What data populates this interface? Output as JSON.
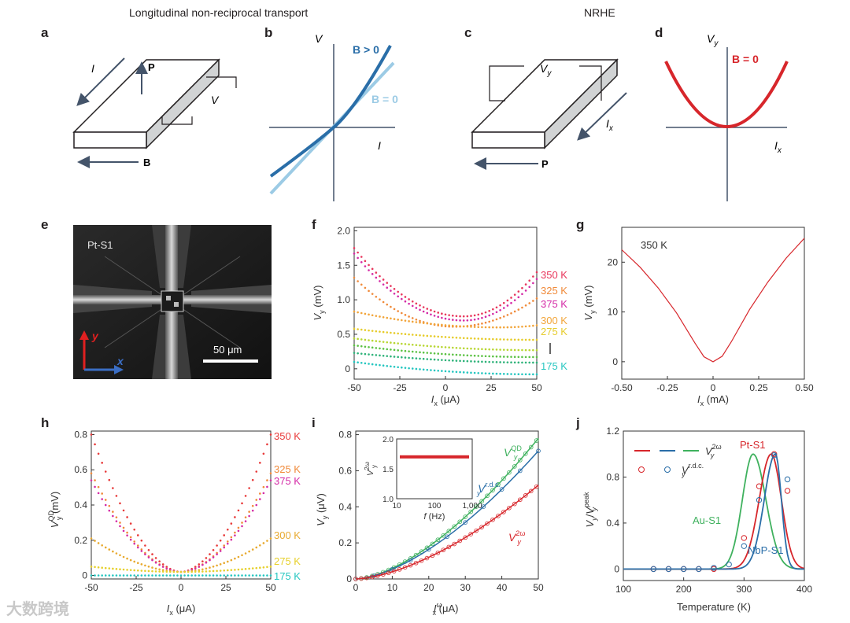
{
  "headers": {
    "left": "Longitudinal non-reciprocal transport",
    "right": "NRHE"
  },
  "panel_labels": {
    "a": "a",
    "b": "b",
    "c": "c",
    "d": "d",
    "e": "e",
    "f": "f",
    "g": "g",
    "h": "h",
    "i": "i",
    "j": "j"
  },
  "schematics": {
    "a": {
      "current": "I",
      "polarization": "P",
      "voltage": "V",
      "field": "B"
    },
    "b": {
      "yaxis": "V",
      "xaxis": "I",
      "pos": "B > 0",
      "zero": "B = 0"
    },
    "c": {
      "voltage": "V",
      "voltage_sub": "y",
      "current": "I",
      "current_sub": "x",
      "polarization": "P"
    },
    "d": {
      "yaxis": "V",
      "yaxis_sub": "y",
      "xaxis": "I",
      "xaxis_sub": "x",
      "curve": "B = 0"
    }
  },
  "micrograph": {
    "sample": "Pt-S1",
    "scale": "50 μm",
    "y_axis": "y",
    "x_axis": "x"
  },
  "colors": {
    "red": "#d7262b",
    "blue": "#2a6ea8",
    "lightblue": "#9ccbe5",
    "green": "#3fb15e",
    "axis": "#333333"
  },
  "chart_data": [
    {
      "panel": "f",
      "type": "scatter",
      "xlabel": "I",
      "xlabel_sub": "x",
      "xunit": " (μA)",
      "ylabel": "V",
      "ylabel_sub": "y",
      "yunit": " (mV)",
      "xlim": [
        -50,
        50
      ],
      "ylim": [
        -0.15,
        2.05
      ],
      "xticks": [
        "-50",
        "-25",
        "0",
        "25",
        "50"
      ],
      "yticks": [
        "0",
        "0.5",
        "1.0",
        "1.5",
        "2.0"
      ],
      "series": [
        {
          "name": "350 K",
          "color": "#e8365c",
          "start": 1.75,
          "min": 0.76,
          "end": 1.4,
          "xmin": 10
        },
        {
          "name": "325 K",
          "color": "#f08a3a",
          "start": 1.32,
          "min": 0.61,
          "end": 1.02,
          "xmin": 5
        },
        {
          "name": "375 K",
          "color": "#d42aa6",
          "start": 1.67,
          "min": 0.7,
          "end": 1.3,
          "xmin": 10
        },
        {
          "name": "300 K",
          "color": "#f2a53a",
          "start": 0.83,
          "min": 0.6,
          "end": 0.63,
          "xmin": 30
        },
        {
          "name": "275 K",
          "color": "#e6cc2c",
          "start": 0.58,
          "min": 0.42,
          "end": 0.42,
          "xmin": 50
        },
        {
          "name": "",
          "color": "#b9d634",
          "start": 0.44,
          "min": 0.27,
          "end": 0.27,
          "xmin": 50
        },
        {
          "name": "",
          "color": "#5cc244",
          "start": 0.34,
          "min": 0.17,
          "end": 0.17,
          "xmin": 50
        },
        {
          "name": "",
          "color": "#2fb37a",
          "start": 0.23,
          "min": 0.09,
          "end": 0.09,
          "xmin": 50
        },
        {
          "name": "175 K",
          "color": "#25c6c0",
          "start": 0.1,
          "min": -0.08,
          "end": -0.08,
          "xmin": 50
        }
      ]
    },
    {
      "panel": "g",
      "type": "line",
      "title": "350 K",
      "xlabel": "I",
      "xlabel_sub": "x",
      "xunit": " (mA)",
      "ylabel": "V",
      "ylabel_sub": "y",
      "yunit": " (mV)",
      "xlim": [
        -0.5,
        0.5
      ],
      "ylim": [
        -3.5,
        27
      ],
      "xticks": [
        "-0.50",
        "-0.25",
        "0",
        "0.25",
        "0.50"
      ],
      "yticks": [
        "0",
        "10",
        "20"
      ],
      "series": [
        {
          "color": "#d7262b",
          "x": [
            -0.5,
            -0.4,
            -0.3,
            -0.2,
            -0.1,
            -0.05,
            0,
            0.05,
            0.1,
            0.2,
            0.3,
            0.4,
            0.5
          ],
          "y": [
            22.5,
            19.0,
            14.8,
            9.8,
            3.8,
            1.0,
            0,
            1.1,
            4.0,
            10.5,
            16.0,
            20.8,
            24.8
          ]
        }
      ]
    },
    {
      "panel": "h",
      "type": "scatter",
      "xlabel": "I",
      "xlabel_sub": "x",
      "xunit": " (μA)",
      "ylabel": "V",
      "ylabel_sub": "y",
      "ylabel_sup": "QD",
      "yunit": " (mV)",
      "xlim": [
        -50,
        50
      ],
      "ylim": [
        -0.02,
        0.82
      ],
      "xticks": [
        "-50",
        "-25",
        "0",
        "25",
        "50"
      ],
      "yticks": [
        "0",
        "0.2",
        "0.4",
        "0.6",
        "0.8"
      ],
      "series": [
        {
          "name": "350 K",
          "color": "#e83a3a",
          "peak": 0.8
        },
        {
          "name": "325 K",
          "color": "#f08a3a",
          "peak": 0.58
        },
        {
          "name": "375 K",
          "color": "#d42aa6",
          "peak": 0.54
        },
        {
          "name": "300 K",
          "color": "#e8aa30",
          "peak": 0.21
        },
        {
          "name": "275 K",
          "color": "#e6d02c",
          "peak": 0.05
        },
        {
          "name": "175 K",
          "color": "#25c6c0",
          "peak": 0.0
        }
      ]
    },
    {
      "panel": "i",
      "type": "scatter",
      "xlabel": "I",
      "xlabel_sub": "x",
      "xlabel_sup": "ω",
      "xunit": " (μA)",
      "ylabel": "V",
      "ylabel_sub": "y",
      "yunit": " (μV)",
      "xlim": [
        0,
        50
      ],
      "ylim": [
        0,
        0.82
      ],
      "xticks": [
        "0",
        "10",
        "20",
        "30",
        "40",
        "50"
      ],
      "yticks": [
        "0",
        "0.2",
        "0.4",
        "0.6",
        "0.8"
      ],
      "series": [
        {
          "name": "QD",
          "color": "#3fb15e",
          "end": 0.78
        },
        {
          "name": "r.d.c.",
          "color": "#2a6ea8",
          "end": 0.71
        },
        {
          "name": "2ω",
          "color": "#d7262b",
          "end": 0.52
        }
      ],
      "inset": {
        "xlabel": "f",
        "xunit": " (Hz)",
        "ylabel": "V",
        "ylabel_sub": "y",
        "ylabel_sup": "2ω",
        "xticks": [
          "10",
          "100",
          "1,000"
        ],
        "yticks": [
          "1.0",
          "1.5",
          "2.0"
        ],
        "value": 1.7,
        "color": "#d7262b"
      }
    },
    {
      "panel": "j",
      "type": "line",
      "xlabel": "Temperature (K)",
      "ylabel": "V",
      "ylabel_sub": "y",
      "ylabel_sup2": "peak",
      "xlim": [
        100,
        400
      ],
      "ylim": [
        -0.1,
        1.2
      ],
      "xticks": [
        "100",
        "200",
        "300",
        "400"
      ],
      "yticks": [
        "0",
        "0.4",
        "0.8",
        "1.2"
      ],
      "series": [
        {
          "name": "Au-S1",
          "color": "#3fb15e",
          "peak_T": 315,
          "wl": 25,
          "wr": 30
        },
        {
          "name": "Pt-S1",
          "color": "#d7262b",
          "peak_T": 345,
          "wl": 28,
          "wr": 24
        },
        {
          "name": "NbP-S1",
          "color": "#2a6ea8",
          "peak_T": 352,
          "wl": 26,
          "wr": 14
        }
      ],
      "legend": {
        "line": "V",
        "line_sup": "2ω",
        "circle": "V",
        "circle_sup": "r.d.c.",
        "sub": "y"
      }
    }
  ],
  "watermark": "大数跨境"
}
